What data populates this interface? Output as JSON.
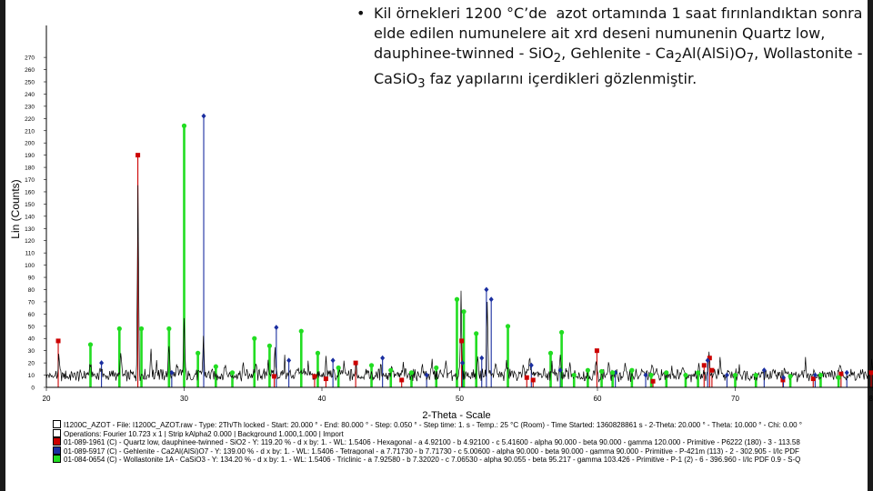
{
  "slide": {
    "bullet": "•",
    "text_html": "Kil örnekleri 1200 °C’de &nbsp;azot ortamında 1 saat fırınlandıktan sonra elde edilen numunelere ait xrd deseni numunenin Quartz low, dauphinee-twinned - SiO<sub>2</sub>, Gehlenite - Ca<sub>2</sub>Al(AlSi)O<sub>7</sub>, Wollastonite - CaSiO<sub>3</sub> faz yapılarını içerdikleri gözlenmiştir."
  },
  "legend": [
    {
      "swatch": "",
      "text": "I1200C_AZOT - File: I1200C_AZOT.raw - Type: 2Th/Th locked - Start: 20.000 ° - End: 80.000 ° - Step: 0.050 ° - Step time: 1. s - Temp.: 25 °C (Room) - Time Started: 1360828861 s - 2-Theta: 20.000 ° - Theta: 10.000 ° - Chi: 0.00 °"
    },
    {
      "swatch": "",
      "text": "Operations: Fourier 10.723 x 1 | Strip kAlpha2 0.000 | Background 1.000,1.000 | Import"
    },
    {
      "swatch": "#cc0000",
      "text": "01-089-1961 (C) - Quartz low, dauphinee-twinned - SiO2 - Y: 119.20 % - d x by: 1. - WL: 1.5406 - Hexagonal - a 4.92100 - b 4.92100 - c 5.41600 - alpha 90.000 - beta 90.000 - gamma 120.000 - Primitive - P6222 (180) - 3 - 113.58"
    },
    {
      "swatch": "#1a2ea0",
      "text": "01-089-5917 (C) - Gehlenite - Ca2Al(AlSi)O7 - Y: 139.00 % - d x by: 1. - WL: 1.5406 - Tetragonal - a 7.71730 - b 7.71730 - c 5.00600 - alpha 90.000 - beta 90.000 - gamma 90.000 - Primitive - P-421m (113) - 2 - 302.905 - I/Ic PDF"
    },
    {
      "swatch": "#22dd22",
      "text": "01-084-0654 (C) - Wollastonite 1A - CaSiO3 - Y: 134.20 % - d x by: 1. - WL: 1.5406 - Triclinic - a 7.92580 - b 7.32020 - c 7.06530 - alpha 90.055 - beta 95.217 - gamma 103.426 - Primitive - P-1 (2) - 6 - 396.960 - I/Ic PDF 0.9 - S-Q"
    }
  ],
  "chart_data": {
    "type": "line",
    "title": "",
    "xlabel": "2-Theta - Scale",
    "ylabel": "Lin (Counts)",
    "xlim": [
      20,
      80
    ],
    "ylim": [
      0,
      280
    ],
    "xticks": [
      20,
      30,
      40,
      50,
      60,
      70,
      80
    ],
    "yticks": [
      0,
      10,
      20,
      30,
      40,
      50,
      60,
      70,
      80,
      90,
      100,
      110,
      120,
      130,
      140,
      150,
      160,
      170,
      180,
      190,
      200,
      210,
      220,
      230,
      240,
      250,
      260,
      270
    ],
    "grid": false,
    "colors": {
      "pattern": "#000000",
      "quartz": "#cc0000",
      "gehlenite": "#1a2ea0",
      "wollastonite": "#22dd22"
    },
    "pattern": {
      "name": "I1200C_AZOT",
      "peaks": [
        [
          20.9,
          14
        ],
        [
          23.2,
          10
        ],
        [
          24.0,
          8
        ],
        [
          25.4,
          22
        ],
        [
          26.65,
          155
        ],
        [
          27.6,
          20
        ],
        [
          28.0,
          12
        ],
        [
          28.9,
          25
        ],
        [
          29.5,
          12
        ],
        [
          30.0,
          45
        ],
        [
          31.4,
          32
        ],
        [
          33.0,
          10
        ],
        [
          34.3,
          9
        ],
        [
          35.2,
          10
        ],
        [
          36.1,
          14
        ],
        [
          36.6,
          22
        ],
        [
          37.3,
          12
        ],
        [
          38.2,
          10
        ],
        [
          39.0,
          9
        ],
        [
          40.3,
          11
        ],
        [
          41.6,
          10
        ],
        [
          42.5,
          8
        ],
        [
          43.2,
          8
        ],
        [
          44.3,
          9
        ],
        [
          45.1,
          10
        ],
        [
          45.9,
          9
        ],
        [
          47.3,
          10
        ],
        [
          48.0,
          9
        ],
        [
          49.0,
          11
        ],
        [
          50.1,
          65
        ],
        [
          51.3,
          14
        ],
        [
          52.0,
          62
        ],
        [
          52.6,
          12
        ],
        [
          53.4,
          12
        ],
        [
          54.6,
          10
        ],
        [
          55.1,
          14
        ],
        [
          56.7,
          10
        ],
        [
          57.3,
          18
        ],
        [
          58.0,
          9
        ],
        [
          59.9,
          12
        ],
        [
          60.8,
          10
        ],
        [
          62.0,
          9
        ],
        [
          64.0,
          10
        ],
        [
          65.4,
          9
        ],
        [
          66.2,
          8
        ],
        [
          67.4,
          9
        ],
        [
          68.1,
          16
        ],
        [
          68.9,
          10
        ],
        [
          70.3,
          9
        ],
        [
          72.8,
          9
        ],
        [
          73.6,
          8
        ],
        [
          75.1,
          10
        ],
        [
          77.6,
          9
        ],
        [
          79.9,
          10
        ]
      ]
    },
    "series": [
      {
        "name": "01-089-1961 (C) - Quartz low, dauphinee-twinned - SiO2",
        "marker": "square",
        "sticks": [
          [
            20.86,
            38
          ],
          [
            26.64,
            190
          ],
          [
            36.54,
            9
          ],
          [
            39.47,
            9
          ],
          [
            40.29,
            7
          ],
          [
            42.45,
            20
          ],
          [
            45.79,
            6
          ],
          [
            50.14,
            38
          ],
          [
            54.87,
            8
          ],
          [
            55.33,
            6
          ],
          [
            59.96,
            30
          ],
          [
            64.03,
            5
          ],
          [
            67.74,
            18
          ],
          [
            68.14,
            24
          ],
          [
            68.31,
            14
          ],
          [
            73.46,
            6
          ],
          [
            75.66,
            7
          ],
          [
            77.68,
            11
          ],
          [
            79.87,
            12
          ]
        ]
      },
      {
        "name": "01-089-5917 (C) - Gehlenite - Ca2Al(AlSi)O7",
        "marker": "diamond",
        "sticks": [
          [
            24.0,
            20
          ],
          [
            29.1,
            12
          ],
          [
            31.42,
            222
          ],
          [
            36.69,
            49
          ],
          [
            37.6,
            22
          ],
          [
            40.8,
            22
          ],
          [
            44.4,
            24
          ],
          [
            47.6,
            10
          ],
          [
            50.2,
            20
          ],
          [
            51.6,
            24
          ],
          [
            51.94,
            80
          ],
          [
            52.29,
            72
          ],
          [
            55.2,
            18
          ],
          [
            57.3,
            14
          ],
          [
            61.3,
            12
          ],
          [
            63.5,
            10
          ],
          [
            68.0,
            22
          ],
          [
            69.4,
            10
          ],
          [
            72.1,
            14
          ],
          [
            73.5,
            8
          ],
          [
            75.8,
            10
          ],
          [
            78.1,
            12
          ]
        ]
      },
      {
        "name": "01-084-0654 (C) - Wollastonite 1A - CaSiO3",
        "marker": "circle",
        "sticks": [
          [
            23.2,
            35
          ],
          [
            25.3,
            48
          ],
          [
            26.9,
            48
          ],
          [
            28.9,
            48
          ],
          [
            30.0,
            214
          ],
          [
            31.0,
            28
          ],
          [
            32.3,
            17
          ],
          [
            33.5,
            12
          ],
          [
            35.1,
            40
          ],
          [
            36.2,
            34
          ],
          [
            38.5,
            46
          ],
          [
            39.7,
            28
          ],
          [
            41.2,
            16
          ],
          [
            43.6,
            18
          ],
          [
            45.0,
            14
          ],
          [
            46.5,
            12
          ],
          [
            48.3,
            16
          ],
          [
            49.8,
            72
          ],
          [
            50.3,
            62
          ],
          [
            51.2,
            44
          ],
          [
            53.5,
            50
          ],
          [
            56.6,
            28
          ],
          [
            57.4,
            45
          ],
          [
            58.3,
            10
          ],
          [
            59.3,
            14
          ],
          [
            60.3,
            13
          ],
          [
            61.1,
            12
          ],
          [
            62.5,
            14
          ],
          [
            63.9,
            10
          ],
          [
            65.0,
            12
          ],
          [
            66.4,
            10
          ],
          [
            67.3,
            12
          ],
          [
            70.0,
            10
          ],
          [
            71.5,
            10
          ],
          [
            74.0,
            9
          ],
          [
            76.2,
            10
          ],
          [
            77.5,
            8
          ]
        ]
      }
    ]
  }
}
